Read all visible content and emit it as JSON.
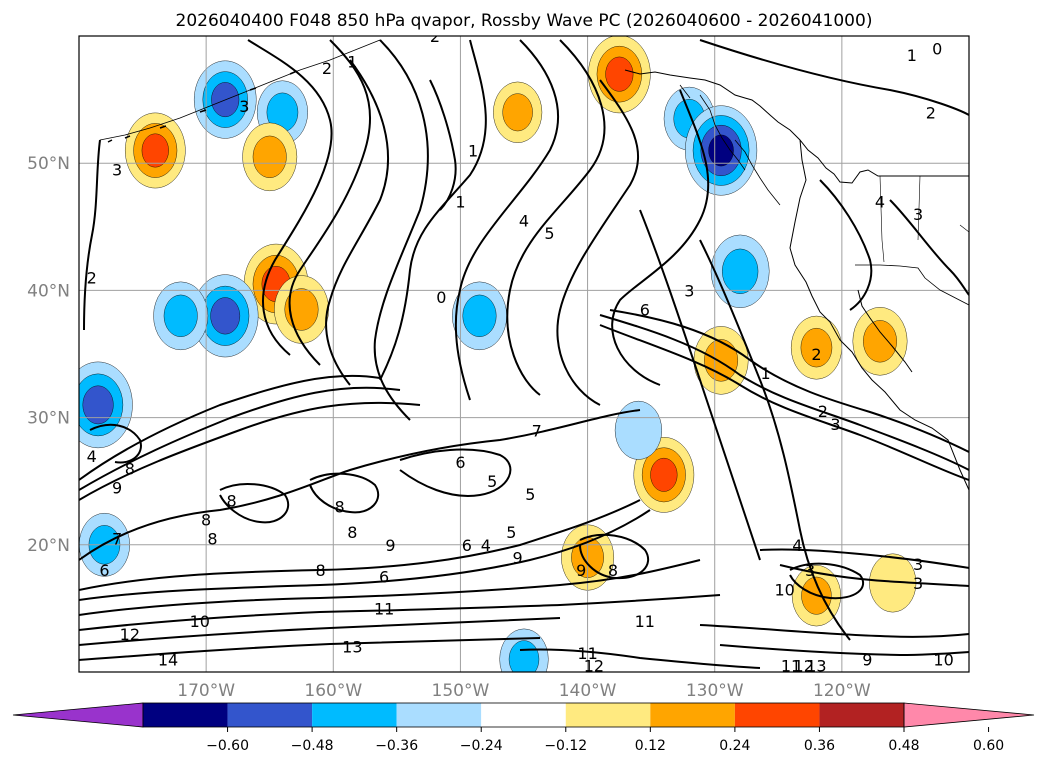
{
  "chart_data": {
    "type": "heatmap",
    "title": "2026040400 F048 850 hPa qvapor, Rossby Wave PC (2026040600 - 2026041000)",
    "map_extent": {
      "lon": [
        -180,
        -110
      ],
      "lat": [
        10,
        60
      ]
    },
    "grid": true,
    "y_ticks": [
      {
        "lat": 20,
        "label": "20°N"
      },
      {
        "lat": 30,
        "label": "30°N"
      },
      {
        "lat": 40,
        "label": "40°N"
      },
      {
        "lat": 50,
        "label": "50°N"
      }
    ],
    "x_ticks": [
      {
        "lon": -170,
        "label": "170°W"
      },
      {
        "lon": -160,
        "label": "160°W"
      },
      {
        "lon": -150,
        "label": "150°W"
      },
      {
        "lon": -140,
        "label": "140°W"
      },
      {
        "lon": -130,
        "label": "130°W"
      },
      {
        "lon": -120,
        "label": "120°W"
      }
    ],
    "grid_lons": [
      -170,
      -160,
      -150,
      -140,
      -130,
      -120
    ],
    "grid_lats": [
      20,
      30,
      40,
      50
    ],
    "colorbar": {
      "levels": [
        -0.72,
        -0.6,
        -0.48,
        -0.36,
        -0.24,
        -0.12,
        0.12,
        0.24,
        0.36,
        0.48,
        0.6,
        0.72
      ],
      "colors": [
        "#9933cc",
        "#000080",
        "#3355cc",
        "#00bbff",
        "#aaddff",
        "#ffffff",
        "#ffea80",
        "#ffa500",
        "#ff4500",
        "#b22222",
        "#ff88aa"
      ],
      "extend": "both",
      "tick_values": [
        -0.6,
        -0.48,
        -0.36,
        -0.24,
        -0.12,
        0.12,
        0.24,
        0.36,
        0.48,
        0.6
      ],
      "tick_labels": [
        "−0.60",
        "−0.48",
        "−0.36",
        "−0.24",
        "−0.12",
        "0.12",
        "0.24",
        "0.36",
        "0.48",
        "0.60"
      ]
    },
    "anomaly_blobs": [
      {
        "lon": -164.5,
        "lat": 40.5,
        "value": 0.4
      },
      {
        "lon": -162.5,
        "lat": 38.5,
        "value": 0.3
      },
      {
        "lon": -168.5,
        "lat": 38.0,
        "value": -0.42
      },
      {
        "lon": -172.0,
        "lat": 38.0,
        "value": -0.3
      },
      {
        "lon": -168.5,
        "lat": 55.0,
        "value": -0.38
      },
      {
        "lon": -164.0,
        "lat": 54.0,
        "value": -0.26
      },
      {
        "lon": -174.0,
        "lat": 51.0,
        "value": 0.36
      },
      {
        "lon": -165.0,
        "lat": 50.5,
        "value": 0.3
      },
      {
        "lon": -178.5,
        "lat": 31.0,
        "value": -0.45
      },
      {
        "lon": -148.5,
        "lat": 38.0,
        "value": -0.3
      },
      {
        "lon": -137.5,
        "lat": 57.0,
        "value": 0.38
      },
      {
        "lon": -132.0,
        "lat": 53.5,
        "value": -0.26
      },
      {
        "lon": -129.5,
        "lat": 51.0,
        "value": -0.48
      },
      {
        "lon": -129.5,
        "lat": 34.5,
        "value": 0.3
      },
      {
        "lon": -134.0,
        "lat": 25.5,
        "value": 0.36
      },
      {
        "lon": -128.0,
        "lat": 41.5,
        "value": -0.34
      },
      {
        "lon": -136.0,
        "lat": 29.0,
        "value": -0.22
      },
      {
        "lon": -145.5,
        "lat": 54.0,
        "value": 0.24
      },
      {
        "lon": -122.0,
        "lat": 35.5,
        "value": 0.26
      },
      {
        "lon": -117.0,
        "lat": 36.0,
        "value": 0.3
      },
      {
        "lon": -178.0,
        "lat": 20.0,
        "value": -0.26
      },
      {
        "lon": -140.0,
        "lat": 19.0,
        "value": 0.28
      },
      {
        "lon": -116.0,
        "lat": 17.0,
        "value": 0.22
      },
      {
        "lon": -122.0,
        "lat": 16.0,
        "value": 0.24
      },
      {
        "lon": -145.0,
        "lat": 11.0,
        "value": -0.24
      }
    ],
    "contour_labels": [
      {
        "lon": -177.0,
        "lat": 49.5,
        "text": "3"
      },
      {
        "lon": -179.0,
        "lat": 41.0,
        "text": "2"
      },
      {
        "lon": -158.5,
        "lat": 58.0,
        "text": "1"
      },
      {
        "lon": -160.5,
        "lat": 57.5,
        "text": "2"
      },
      {
        "lon": -167.0,
        "lat": 54.5,
        "text": "3"
      },
      {
        "lon": -152.0,
        "lat": 60.0,
        "text": "2"
      },
      {
        "lon": -149.0,
        "lat": 51.0,
        "text": "1"
      },
      {
        "lon": -150.0,
        "lat": 47.0,
        "text": "1"
      },
      {
        "lon": -151.5,
        "lat": 39.5,
        "text": "0"
      },
      {
        "lon": -145.0,
        "lat": 45.5,
        "text": "4"
      },
      {
        "lon": -143.0,
        "lat": 44.5,
        "text": "5"
      },
      {
        "lon": -135.5,
        "lat": 38.5,
        "text": "6"
      },
      {
        "lon": -132.0,
        "lat": 40.0,
        "text": "3"
      },
      {
        "lon": -114.5,
        "lat": 58.5,
        "text": "1"
      },
      {
        "lon": -112.5,
        "lat": 59.0,
        "text": "0"
      },
      {
        "lon": -113.0,
        "lat": 54.0,
        "text": "2"
      },
      {
        "lon": -117.0,
        "lat": 47.0,
        "text": "4"
      },
      {
        "lon": -114.0,
        "lat": 46.0,
        "text": "3"
      },
      {
        "lon": -122.0,
        "lat": 35.0,
        "text": "2"
      },
      {
        "lon": -126.0,
        "lat": 33.5,
        "text": "1"
      },
      {
        "lon": -121.5,
        "lat": 30.5,
        "text": "2"
      },
      {
        "lon": -120.5,
        "lat": 29.5,
        "text": "3"
      },
      {
        "lon": -179.0,
        "lat": 27.0,
        "text": "4"
      },
      {
        "lon": -176.0,
        "lat": 26.0,
        "text": "8"
      },
      {
        "lon": -177.0,
        "lat": 24.5,
        "text": "9"
      },
      {
        "lon": -177.0,
        "lat": 20.5,
        "text": "7"
      },
      {
        "lon": -178.0,
        "lat": 18.0,
        "text": "6"
      },
      {
        "lon": -168.0,
        "lat": 23.5,
        "text": "8"
      },
      {
        "lon": -170.0,
        "lat": 22.0,
        "text": "8"
      },
      {
        "lon": -169.5,
        "lat": 20.5,
        "text": "8"
      },
      {
        "lon": -159.5,
        "lat": 23.0,
        "text": "8"
      },
      {
        "lon": -158.5,
        "lat": 21.0,
        "text": "8"
      },
      {
        "lon": -161.0,
        "lat": 18.0,
        "text": "8"
      },
      {
        "lon": -155.5,
        "lat": 20.0,
        "text": "9"
      },
      {
        "lon": -156.0,
        "lat": 17.5,
        "text": "6"
      },
      {
        "lon": -150.0,
        "lat": 26.5,
        "text": "6"
      },
      {
        "lon": -147.5,
        "lat": 25.0,
        "text": "5"
      },
      {
        "lon": -144.0,
        "lat": 29.0,
        "text": "7"
      },
      {
        "lon": -144.5,
        "lat": 24.0,
        "text": "5"
      },
      {
        "lon": -149.5,
        "lat": 20.0,
        "text": "6"
      },
      {
        "lon": -148.0,
        "lat": 20.0,
        "text": "4"
      },
      {
        "lon": -146.0,
        "lat": 21.0,
        "text": "5"
      },
      {
        "lon": -145.5,
        "lat": 19.0,
        "text": "9"
      },
      {
        "lon": -156.0,
        "lat": 15.0,
        "text": "11"
      },
      {
        "lon": -170.5,
        "lat": 14.0,
        "text": "10"
      },
      {
        "lon": -176.0,
        "lat": 13.0,
        "text": "12"
      },
      {
        "lon": -173.0,
        "lat": 11.0,
        "text": "14"
      },
      {
        "lon": -158.5,
        "lat": 12.0,
        "text": "13"
      },
      {
        "lon": -140.5,
        "lat": 18.0,
        "text": "9"
      },
      {
        "lon": -138.0,
        "lat": 18.0,
        "text": "8"
      },
      {
        "lon": -135.5,
        "lat": 14.0,
        "text": "11"
      },
      {
        "lon": -140.0,
        "lat": 11.5,
        "text": "11"
      },
      {
        "lon": -139.5,
        "lat": 10.5,
        "text": "12"
      },
      {
        "lon": -124.5,
        "lat": 16.5,
        "text": "10"
      },
      {
        "lon": -123.5,
        "lat": 20.0,
        "text": "4"
      },
      {
        "lon": -122.5,
        "lat": 18.0,
        "text": "3"
      },
      {
        "lon": -114.0,
        "lat": 17.0,
        "text": "3"
      },
      {
        "lon": -114.0,
        "lat": 18.5,
        "text": "3"
      },
      {
        "lon": -118.0,
        "lat": 11.0,
        "text": "9"
      },
      {
        "lon": -112.0,
        "lat": 11.0,
        "text": "10"
      },
      {
        "lon": -122.0,
        "lat": 10.5,
        "text": "13"
      },
      {
        "lon": -123.0,
        "lat": 10.5,
        "text": "12"
      },
      {
        "lon": -124.0,
        "lat": 10.5,
        "text": "11"
      }
    ]
  }
}
